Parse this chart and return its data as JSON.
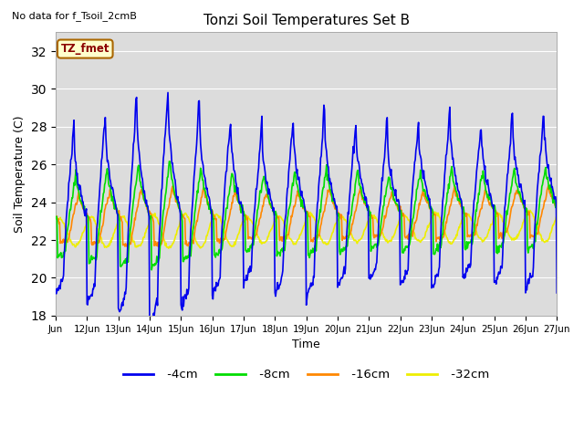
{
  "title": "Tonzi Soil Temperatures Set B",
  "xlabel": "Time",
  "ylabel": "Soil Temperature (C)",
  "no_data_label": "No data for f_Tsoil_2cmB",
  "annotation_label": "TZ_fmet",
  "ylim": [
    18,
    33
  ],
  "yticks": [
    18,
    20,
    22,
    24,
    26,
    28,
    30,
    32
  ],
  "bg_color": "#e8e8e8",
  "plot_bg": "#dcdcdc",
  "colors": {
    "4cm": "#0000ee",
    "8cm": "#00dd00",
    "16cm": "#ff8800",
    "32cm": "#eeee00"
  },
  "line_width": 1.2,
  "fig_size": [
    6.4,
    4.8
  ],
  "dpi": 100
}
